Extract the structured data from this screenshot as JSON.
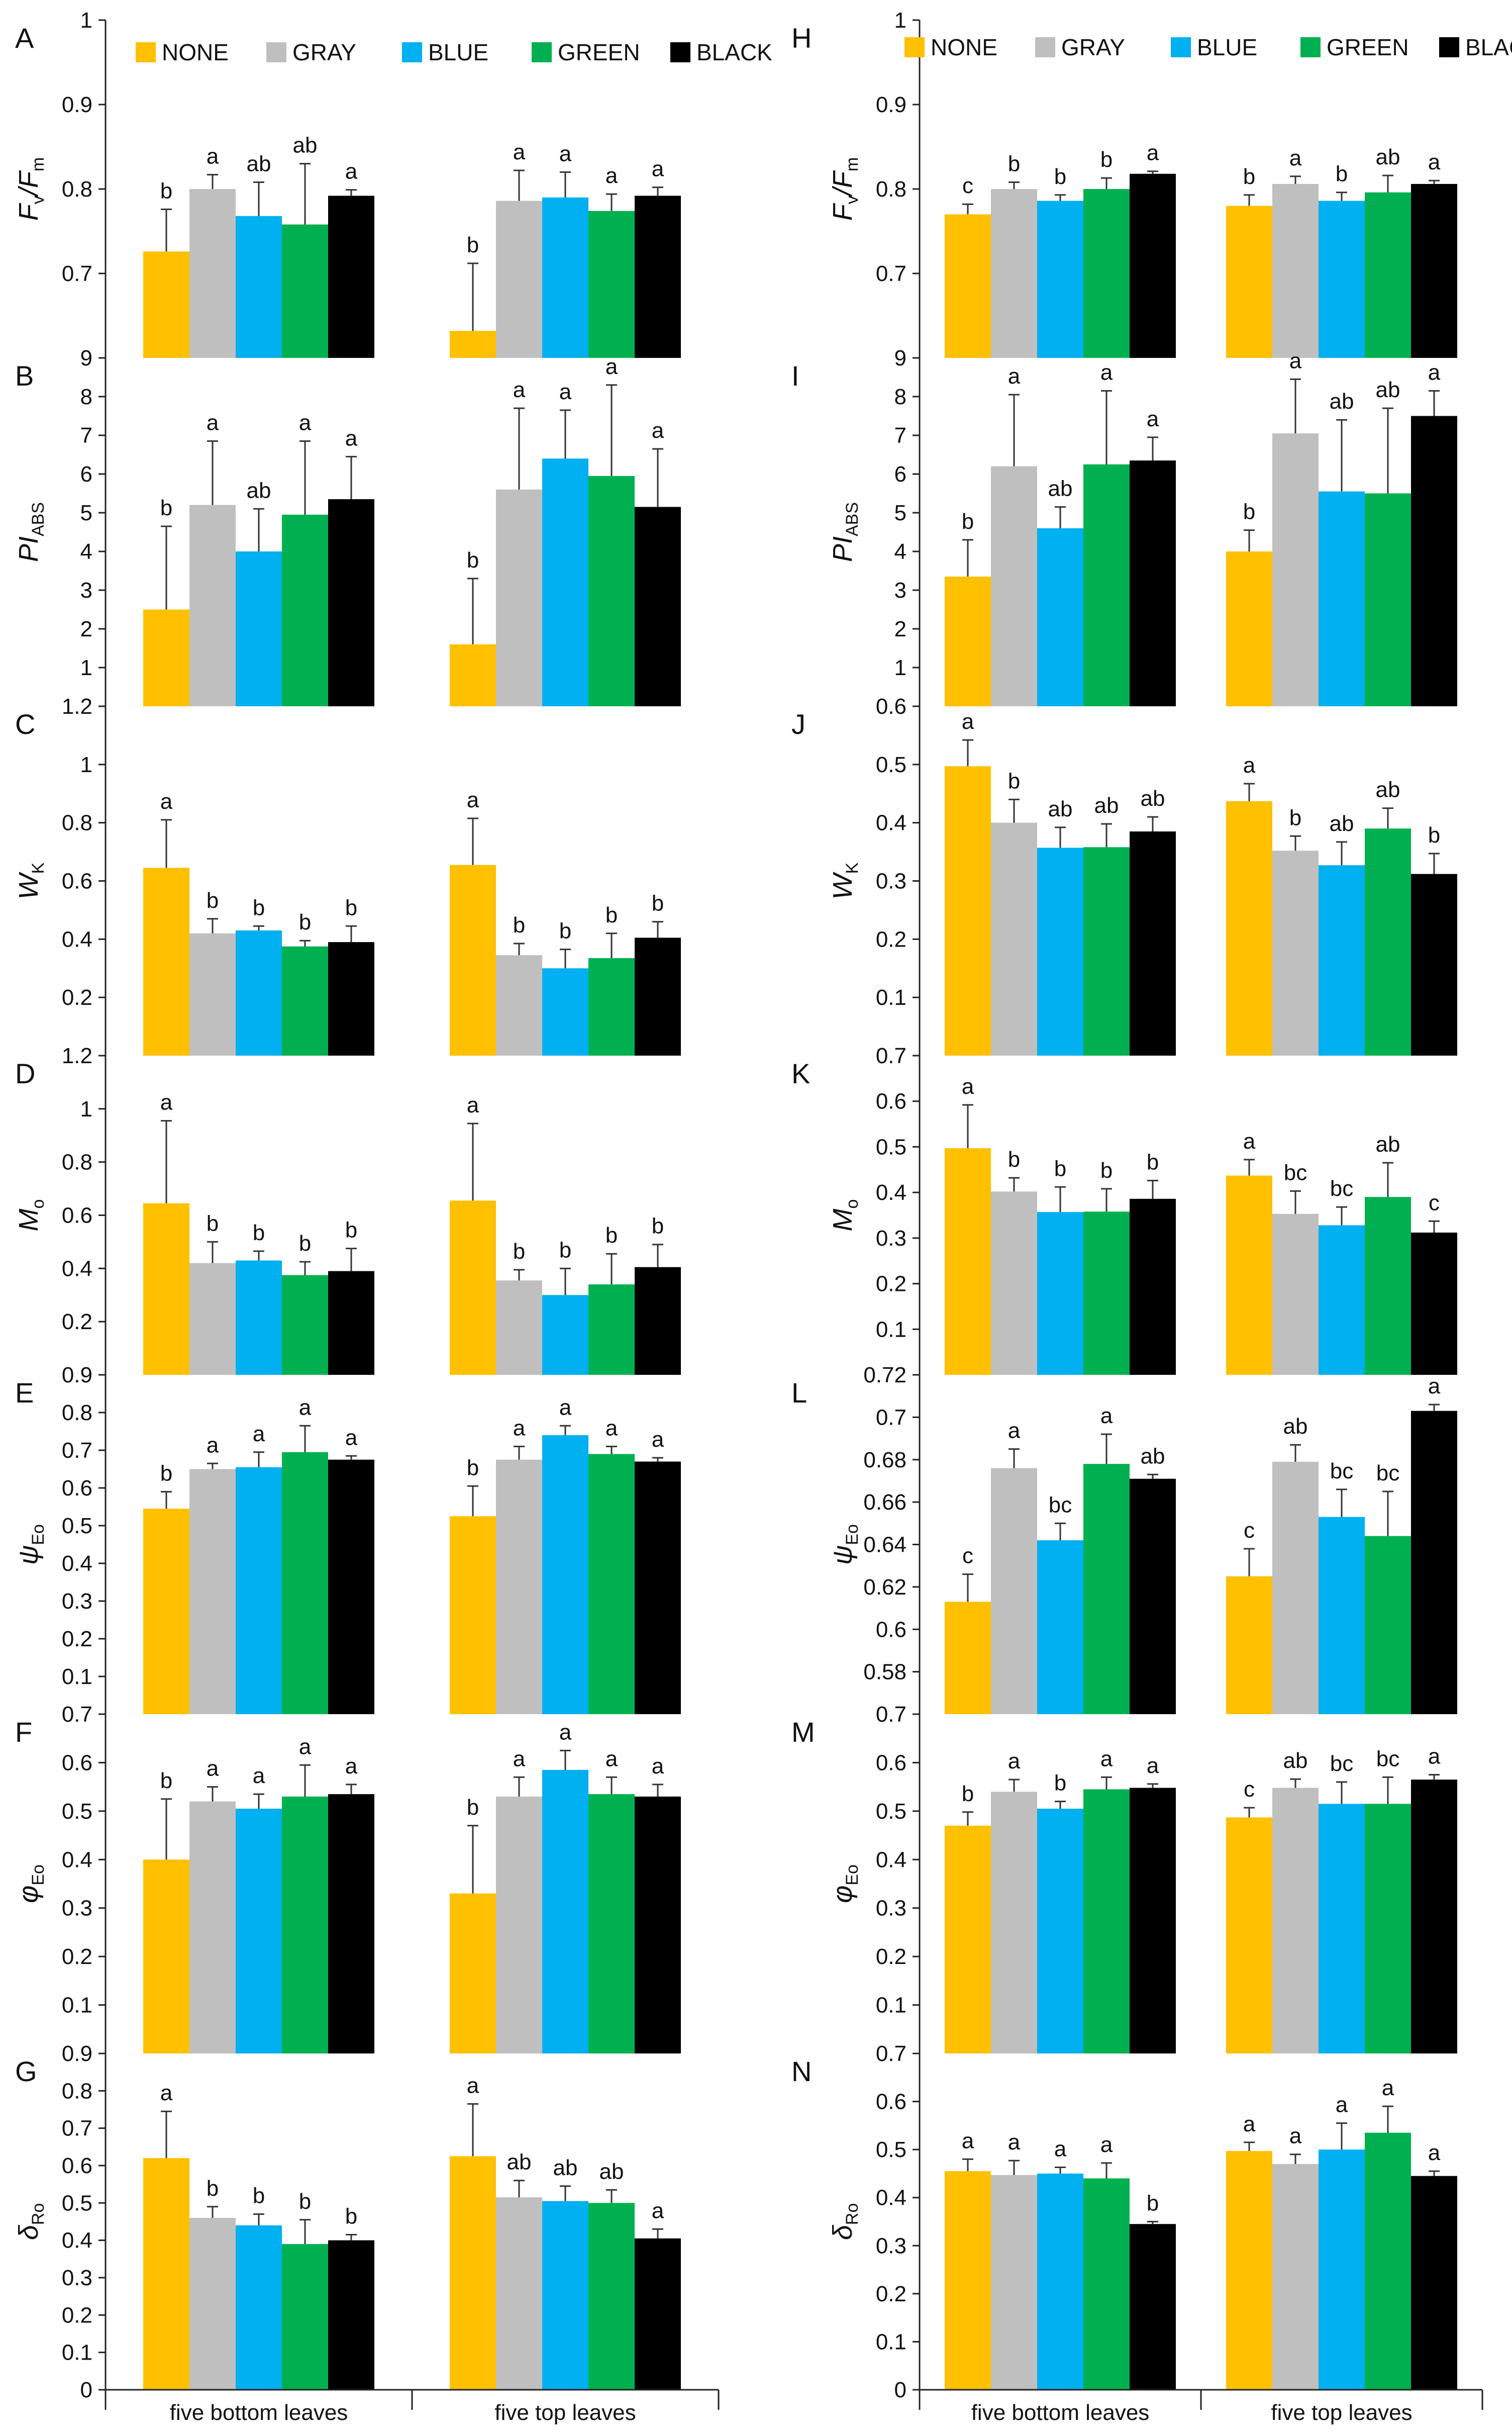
{
  "colors": {
    "NONE": "#FFC000",
    "GRAY": "#BFBFBF",
    "BLUE": "#00B0F0",
    "GREEN": "#00B050",
    "BLACK": "#000000"
  },
  "legend": [
    "NONE",
    "GRAY",
    "BLUE",
    "GREEN",
    "BLACK"
  ],
  "categories": [
    "five bottom leaves",
    "five top leaves"
  ],
  "chart_data": [
    {
      "type": "bar",
      "panel": "A",
      "ylabel": {
        "main": "F",
        "sub": "v",
        "sep": "/F",
        "sub2": "m"
      },
      "ylim": [
        0.6,
        1
      ],
      "ticks": [
        0.7,
        0.8,
        0.9,
        1
      ],
      "tick_labels": [
        "0.7",
        "0.8",
        "0.9",
        "1"
      ],
      "values": [
        [
          0.726,
          0.8,
          0.768,
          0.758,
          0.792
        ],
        [
          0.632,
          0.786,
          0.79,
          0.774,
          0.792
        ]
      ],
      "errors": [
        [
          0.05,
          0.017,
          0.04,
          0.072,
          0.007
        ],
        [
          0.08,
          0.036,
          0.03,
          0.02,
          0.01
        ]
      ],
      "letters": [
        [
          "b",
          "a",
          "ab",
          "ab",
          "a"
        ],
        [
          "b",
          "a",
          "a",
          "a",
          "a"
        ]
      ]
    },
    {
      "type": "bar",
      "panel": "B",
      "ylabel": {
        "main": "PI",
        "sub": "ABS"
      },
      "ylim": [
        0,
        9
      ],
      "ticks": [
        1,
        2,
        3,
        4,
        5,
        6,
        7,
        8,
        9
      ],
      "tick_labels": [
        "1",
        "2",
        "3",
        "4",
        "5",
        "6",
        "7",
        "8",
        "9"
      ],
      "values": [
        [
          2.5,
          5.2,
          4.0,
          4.95,
          5.35
        ],
        [
          1.6,
          5.6,
          6.4,
          5.95,
          5.15
        ]
      ],
      "errors": [
        [
          2.15,
          1.65,
          1.1,
          1.9,
          1.1
        ],
        [
          1.7,
          2.1,
          1.25,
          2.35,
          1.5
        ]
      ],
      "letters": [
        [
          "b",
          "a",
          "ab",
          "a",
          "a"
        ],
        [
          "b",
          "a",
          "a",
          "a",
          "a"
        ]
      ]
    },
    {
      "type": "bar",
      "panel": "C",
      "ylabel": {
        "main": "W",
        "sub": "K"
      },
      "ylim": [
        0,
        1.2
      ],
      "ticks": [
        0.2,
        0.4,
        0.6,
        0.8,
        1,
        1.2
      ],
      "tick_labels": [
        "0.2",
        "0.4",
        "0.6",
        "0.8",
        "1",
        "1.2"
      ],
      "values": [
        [
          0.645,
          0.42,
          0.43,
          0.375,
          0.39
        ],
        [
          0.655,
          0.345,
          0.3,
          0.335,
          0.405
        ]
      ],
      "errors": [
        [
          0.165,
          0.05,
          0.015,
          0.02,
          0.055
        ],
        [
          0.16,
          0.04,
          0.065,
          0.085,
          0.055
        ]
      ],
      "letters": [
        [
          "a",
          "b",
          "b",
          "b",
          "b"
        ],
        [
          "a",
          "b",
          "b",
          "b",
          "b"
        ]
      ]
    },
    {
      "type": "bar",
      "panel": "D",
      "ylabel": {
        "main": "M",
        "sub": "o"
      },
      "ylim": [
        0,
        1.2
      ],
      "ticks": [
        0.2,
        0.4,
        0.6,
        0.8,
        1,
        1.2
      ],
      "tick_labels": [
        "0.2",
        "0.4",
        "0.6",
        "0.8",
        "1",
        "1.2"
      ],
      "values": [
        [
          0.645,
          0.42,
          0.43,
          0.375,
          0.39
        ],
        [
          0.655,
          0.355,
          0.3,
          0.34,
          0.405
        ]
      ],
      "errors": [
        [
          0.31,
          0.08,
          0.035,
          0.05,
          0.085
        ],
        [
          0.29,
          0.04,
          0.1,
          0.115,
          0.085
        ]
      ],
      "letters": [
        [
          "a",
          "b",
          "b",
          "b",
          "b"
        ],
        [
          "a",
          "b",
          "b",
          "b",
          "b"
        ]
      ]
    },
    {
      "type": "bar",
      "panel": "E",
      "ylabel": {
        "main": "ψ",
        "sub": "Eo"
      },
      "ylim": [
        0,
        0.9
      ],
      "ticks": [
        0.1,
        0.2,
        0.3,
        0.4,
        0.5,
        0.6,
        0.7,
        0.8,
        0.9
      ],
      "tick_labels": [
        "0.1",
        "0.2",
        "0.3",
        "0.4",
        "0.5",
        "0.6",
        "0.7",
        "0.8",
        "0.9"
      ],
      "values": [
        [
          0.545,
          0.65,
          0.655,
          0.695,
          0.675
        ],
        [
          0.525,
          0.675,
          0.74,
          0.69,
          0.67
        ]
      ],
      "errors": [
        [
          0.045,
          0.015,
          0.04,
          0.07,
          0.01
        ],
        [
          0.08,
          0.035,
          0.025,
          0.02,
          0.01
        ]
      ],
      "letters": [
        [
          "b",
          "a",
          "a",
          "a",
          "a"
        ],
        [
          "b",
          "a",
          "a",
          "a",
          "a"
        ]
      ]
    },
    {
      "type": "bar",
      "panel": "F",
      "ylabel": {
        "main": "φ",
        "sub": "Eo"
      },
      "ylim": [
        0,
        0.7
      ],
      "ticks": [
        0.1,
        0.2,
        0.3,
        0.4,
        0.5,
        0.6,
        0.7
      ],
      "tick_labels": [
        "0.1",
        "0.2",
        "0.3",
        "0.4",
        "0.5",
        "0.6",
        "0.7"
      ],
      "values": [
        [
          0.4,
          0.52,
          0.505,
          0.53,
          0.535
        ],
        [
          0.33,
          0.53,
          0.585,
          0.535,
          0.53
        ]
      ],
      "errors": [
        [
          0.125,
          0.03,
          0.03,
          0.065,
          0.02
        ],
        [
          0.14,
          0.04,
          0.04,
          0.035,
          0.025
        ]
      ],
      "letters": [
        [
          "b",
          "a",
          "a",
          "a",
          "a"
        ],
        [
          "b",
          "a",
          "a",
          "a",
          "a"
        ]
      ]
    },
    {
      "type": "bar",
      "panel": "G",
      "ylabel": {
        "main": "δ",
        "sub": "Ro"
      },
      "ylim": [
        0,
        0.9
      ],
      "ticks": [
        0,
        0.1,
        0.2,
        0.3,
        0.4,
        0.5,
        0.6,
        0.7,
        0.8,
        0.9
      ],
      "tick_labels": [
        "0",
        "0.1",
        "0.2",
        "0.3",
        "0.4",
        "0.5",
        "0.6",
        "0.7",
        "0.8",
        "0.9"
      ],
      "values": [
        [
          0.62,
          0.46,
          0.44,
          0.39,
          0.4
        ],
        [
          0.625,
          0.515,
          0.505,
          0.5,
          0.405
        ]
      ],
      "errors": [
        [
          0.125,
          0.03,
          0.03,
          0.065,
          0.015
        ],
        [
          0.14,
          0.045,
          0.04,
          0.035,
          0.025
        ]
      ],
      "letters": [
        [
          "a",
          "b",
          "b",
          "b",
          "b"
        ],
        [
          "a",
          "ab",
          "ab",
          "ab",
          "a"
        ]
      ]
    },
    {
      "type": "bar",
      "panel": "H",
      "ylabel": {
        "main": "F",
        "sub": "v",
        "sep": "/F",
        "sub2": "m"
      },
      "ylim": [
        0.6,
        1
      ],
      "ticks": [
        0.7,
        0.8,
        0.9,
        1
      ],
      "tick_labels": [
        "0.7",
        "0.8",
        "0.9",
        "1"
      ],
      "values": [
        [
          0.77,
          0.8,
          0.786,
          0.8,
          0.818
        ],
        [
          0.78,
          0.806,
          0.786,
          0.796,
          0.806
        ]
      ],
      "errors": [
        [
          0.012,
          0.008,
          0.007,
          0.013,
          0.003
        ],
        [
          0.013,
          0.009,
          0.01,
          0.02,
          0.004
        ]
      ],
      "letters": [
        [
          "c",
          "b",
          "b",
          "b",
          "a"
        ],
        [
          "b",
          "a",
          "b",
          "ab",
          "a"
        ]
      ]
    },
    {
      "type": "bar",
      "panel": "I",
      "ylabel": {
        "main": "PI",
        "sub": "ABS"
      },
      "ylim": [
        0,
        9
      ],
      "ticks": [
        1,
        2,
        3,
        4,
        5,
        6,
        7,
        8,
        9
      ],
      "tick_labels": [
        "1",
        "2",
        "3",
        "4",
        "5",
        "6",
        "7",
        "8",
        "9"
      ],
      "values": [
        [
          3.35,
          6.2,
          4.6,
          6.25,
          6.35
        ],
        [
          4.0,
          7.05,
          5.55,
          5.5,
          7.5
        ]
      ],
      "errors": [
        [
          0.95,
          1.85,
          0.55,
          1.9,
          0.6
        ],
        [
          0.55,
          1.4,
          1.85,
          2.2,
          0.65
        ]
      ],
      "letters": [
        [
          "b",
          "a",
          "ab",
          "a",
          "a"
        ],
        [
          "b",
          "a",
          "ab",
          "ab",
          "a"
        ]
      ]
    },
    {
      "type": "bar",
      "panel": "J",
      "ylabel": {
        "main": "W",
        "sub": "K"
      },
      "ylim": [
        0,
        0.6
      ],
      "ticks": [
        0.1,
        0.2,
        0.3,
        0.4,
        0.5,
        0.6
      ],
      "tick_labels": [
        "0.1",
        "0.2",
        "0.3",
        "0.4",
        "0.5",
        "0.6"
      ],
      "values": [
        [
          0.497,
          0.4,
          0.357,
          0.358,
          0.385
        ],
        [
          0.437,
          0.352,
          0.327,
          0.39,
          0.312
        ]
      ],
      "errors": [
        [
          0.045,
          0.04,
          0.035,
          0.04,
          0.025
        ],
        [
          0.03,
          0.025,
          0.04,
          0.035,
          0.035
        ]
      ],
      "letters": [
        [
          "a",
          "b",
          "ab",
          "ab",
          "ab"
        ],
        [
          "a",
          "b",
          "ab",
          "ab",
          "b"
        ]
      ]
    },
    {
      "type": "bar",
      "panel": "K",
      "ylabel": {
        "main": "M",
        "sub": "o"
      },
      "ylim": [
        0,
        0.7
      ],
      "ticks": [
        0.1,
        0.2,
        0.3,
        0.4,
        0.5,
        0.6,
        0.7
      ],
      "tick_labels": [
        "0.1",
        "0.2",
        "0.3",
        "0.4",
        "0.5",
        "0.6",
        "0.7"
      ],
      "values": [
        [
          0.497,
          0.402,
          0.357,
          0.358,
          0.386
        ],
        [
          0.437,
          0.353,
          0.328,
          0.39,
          0.312
        ]
      ],
      "errors": [
        [
          0.095,
          0.03,
          0.055,
          0.05,
          0.04
        ],
        [
          0.035,
          0.05,
          0.04,
          0.075,
          0.025
        ]
      ],
      "letters": [
        [
          "a",
          "b",
          "b",
          "b",
          "b"
        ],
        [
          "a",
          "bc",
          "bc",
          "ab",
          "c"
        ]
      ]
    },
    {
      "type": "bar",
      "panel": "L",
      "ylabel": {
        "main": "ψ",
        "sub": "Eo"
      },
      "ylim": [
        0.56,
        0.72
      ],
      "ticks": [
        0.58,
        0.6,
        0.62,
        0.64,
        0.66,
        0.68,
        0.7,
        0.72
      ],
      "tick_labels": [
        "0.58",
        "0.6",
        "0.62",
        "0.64",
        "0.66",
        "0.68",
        "0.7",
        "0.72"
      ],
      "values": [
        [
          0.613,
          0.676,
          0.642,
          0.678,
          0.671
        ],
        [
          0.625,
          0.679,
          0.653,
          0.644,
          0.703
        ]
      ],
      "errors": [
        [
          0.013,
          0.009,
          0.008,
          0.014,
          0.002
        ],
        [
          0.013,
          0.008,
          0.013,
          0.021,
          0.003
        ]
      ],
      "letters": [
        [
          "c",
          "a",
          "bc",
          "a",
          "ab"
        ],
        [
          "c",
          "ab",
          "bc",
          "bc",
          "a"
        ]
      ]
    },
    {
      "type": "bar",
      "panel": "M",
      "ylabel": {
        "main": "φ",
        "sub": "Eo"
      },
      "ylim": [
        0,
        0.7
      ],
      "ticks": [
        0.1,
        0.2,
        0.3,
        0.4,
        0.5,
        0.6,
        0.7
      ],
      "tick_labels": [
        "0.1",
        "0.2",
        "0.3",
        "0.4",
        "0.5",
        "0.6",
        "0.7"
      ],
      "values": [
        [
          0.47,
          0.54,
          0.505,
          0.545,
          0.548
        ],
        [
          0.487,
          0.548,
          0.515,
          0.515,
          0.565
        ]
      ],
      "errors": [
        [
          0.028,
          0.025,
          0.015,
          0.025,
          0.008
        ],
        [
          0.02,
          0.018,
          0.045,
          0.055,
          0.01
        ]
      ],
      "letters": [
        [
          "b",
          "a",
          "b",
          "a",
          "a"
        ],
        [
          "c",
          "ab",
          "bc",
          "bc",
          "a"
        ]
      ]
    },
    {
      "type": "bar",
      "panel": "N",
      "ylabel": {
        "main": "δ",
        "sub": "Ro"
      },
      "ylim": [
        0,
        0.7
      ],
      "ticks": [
        0,
        0.1,
        0.2,
        0.3,
        0.4,
        0.5,
        0.6,
        0.7
      ],
      "tick_labels": [
        "0",
        "0.1",
        "0.2",
        "0.3",
        "0.4",
        "0.5",
        "0.6",
        "0.7"
      ],
      "values": [
        [
          0.455,
          0.447,
          0.45,
          0.44,
          0.345
        ],
        [
          0.497,
          0.47,
          0.5,
          0.535,
          0.445
        ]
      ],
      "errors": [
        [
          0.025,
          0.03,
          0.013,
          0.032,
          0.005
        ],
        [
          0.018,
          0.02,
          0.055,
          0.055,
          0.01
        ]
      ],
      "letters": [
        [
          "a",
          "a",
          "a",
          "a",
          "b"
        ],
        [
          "a",
          "a",
          "a",
          "a",
          "a"
        ]
      ]
    }
  ]
}
